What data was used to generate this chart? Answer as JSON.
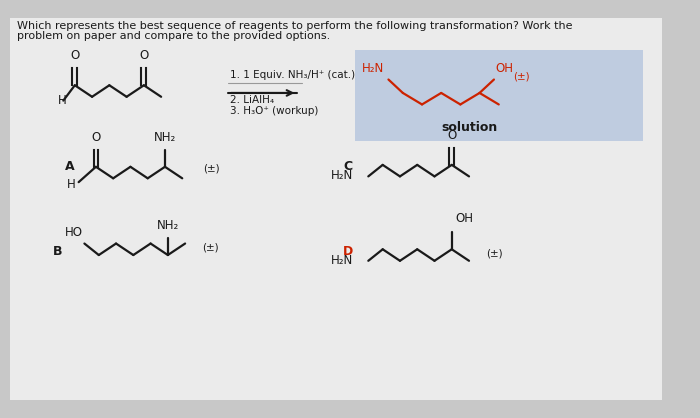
{
  "bg_color": "#c8c8c8",
  "panel_color": "#e8e8e8",
  "solution_box_color": "#c0cde0",
  "black": "#1a1a1a",
  "red": "#cc2200",
  "title1": "Which represents the best sequence of reagents to perform the following transformation? Work the",
  "title2": "problem on paper and compare to the provided options.",
  "reagent1": "1. 1 Equiv. NH₃/H⁺ (cat.)",
  "reagent2": "2. LiAlH₄",
  "reagent3": "3. H₃O⁺ (workup)",
  "solution_text": "solution"
}
